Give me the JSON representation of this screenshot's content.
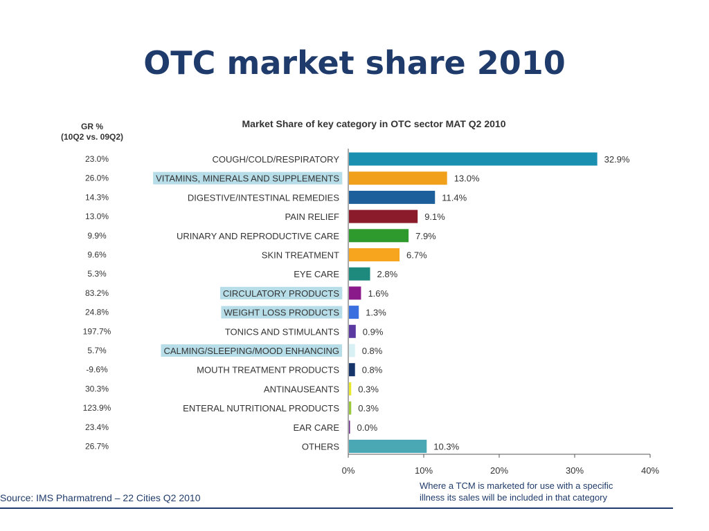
{
  "slide": {
    "title": "OTC market share 2010"
  },
  "chart_data": {
    "type": "bar",
    "orientation": "horizontal",
    "title": "Market Share of key category in OTC sector MAT Q2 2010",
    "growth_header": [
      "GR %",
      "(10Q2 vs. 09Q2)"
    ],
    "categories": [
      "COUGH/COLD/RESPIRATORY",
      "VITAMINS, MINERALS AND SUPPLEMENTS",
      "DIGESTIVE/INTESTINAL REMEDIES",
      "PAIN RELIEF",
      "URINARY AND REPRODUCTIVE CARE",
      "SKIN TREATMENT",
      "EYE CARE",
      "CIRCULATORY PRODUCTS",
      "WEIGHT LOSS PRODUCTS",
      "TONICS AND STIMULANTS",
      "CALMING/SLEEPING/MOOD ENHANCING",
      "MOUTH TREATMENT PRODUCTS",
      "ANTINAUSEANTS",
      "ENTERAL NUTRITIONAL PRODUCTS",
      "EAR CARE",
      "OTHERS"
    ],
    "values": [
      32.9,
      13.0,
      11.4,
      9.1,
      7.9,
      6.7,
      2.8,
      1.6,
      1.3,
      0.9,
      0.8,
      0.8,
      0.3,
      0.3,
      0.0,
      10.3
    ],
    "value_labels": [
      "32.9%",
      "13.0%",
      "11.4%",
      "9.1%",
      "7.9%",
      "6.7%",
      "2.8%",
      "1.6%",
      "1.3%",
      "0.9%",
      "0.8%",
      "0.8%",
      "0.3%",
      "0.3%",
      "0.0%",
      "10.3%"
    ],
    "growth": [
      "23.0%",
      "26.0%",
      "14.3%",
      "13.0%",
      "9.9%",
      "9.6%",
      "5.3%",
      "83.2%",
      "24.8%",
      "197.7%",
      "5.7%",
      "-9.6%",
      "30.3%",
      "123.9%",
      "23.4%",
      "26.7%"
    ],
    "highlighted": [
      false,
      true,
      false,
      false,
      false,
      false,
      false,
      true,
      true,
      false,
      true,
      false,
      false,
      false,
      false,
      false
    ],
    "colors": [
      "#1a8fb0",
      "#f0a01a",
      "#1d5f9a",
      "#8b1a2a",
      "#2e9a2e",
      "#f7a51e",
      "#1e8a7e",
      "#8a1a8a",
      "#3a6fe0",
      "#5a3aa0",
      "#d8f0f4",
      "#14346a",
      "#e8e82a",
      "#9ac83a",
      "#6a2a8a",
      "#4aa8b4"
    ],
    "highlight_color": "#b6dde8",
    "xlim": [
      0,
      40
    ],
    "xticks": [
      0,
      10,
      20,
      30,
      40
    ],
    "xtick_labels": [
      "0%",
      "10%",
      "20%",
      "30%",
      "40%"
    ],
    "grid": false
  },
  "notes": {
    "footnote_line1": "Where a TCM is marketed for use with a specific",
    "footnote_line2": "illness its sales will be included in that category",
    "source": "Source: IMS Pharmatrend – 22 Cities Q2 2010"
  }
}
